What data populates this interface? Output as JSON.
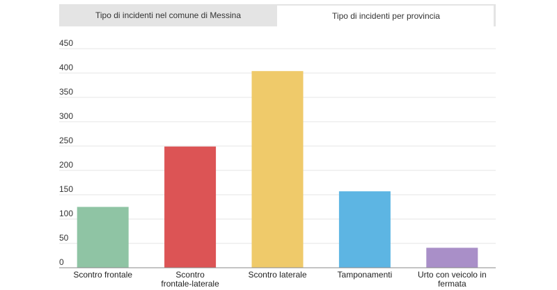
{
  "tabs": [
    {
      "label": "Tipo di incidenti nel comune di Messina",
      "active": false
    },
    {
      "label": "Tipo di incidenti per provincia",
      "active": true
    }
  ],
  "chart_data": {
    "type": "bar",
    "categories": [
      [
        "Scontro frontale"
      ],
      [
        "Scontro",
        "frontale-laterale"
      ],
      [
        "Scontro laterale"
      ],
      [
        "Tamponamenti"
      ],
      [
        "Urto con veicolo in",
        "fermata"
      ]
    ],
    "values": [
      125,
      249,
      404,
      157,
      41
    ],
    "colors": [
      "#8fc4a4",
      "#dc5455",
      "#efca6a",
      "#5db5e3",
      "#a98fc8"
    ],
    "yticks": [
      0,
      50,
      100,
      150,
      200,
      250,
      300,
      350,
      400,
      450
    ],
    "ylim": [
      0,
      450
    ],
    "grid": true,
    "gridColor": "#e6e6e6",
    "axisColor": "#888888"
  }
}
